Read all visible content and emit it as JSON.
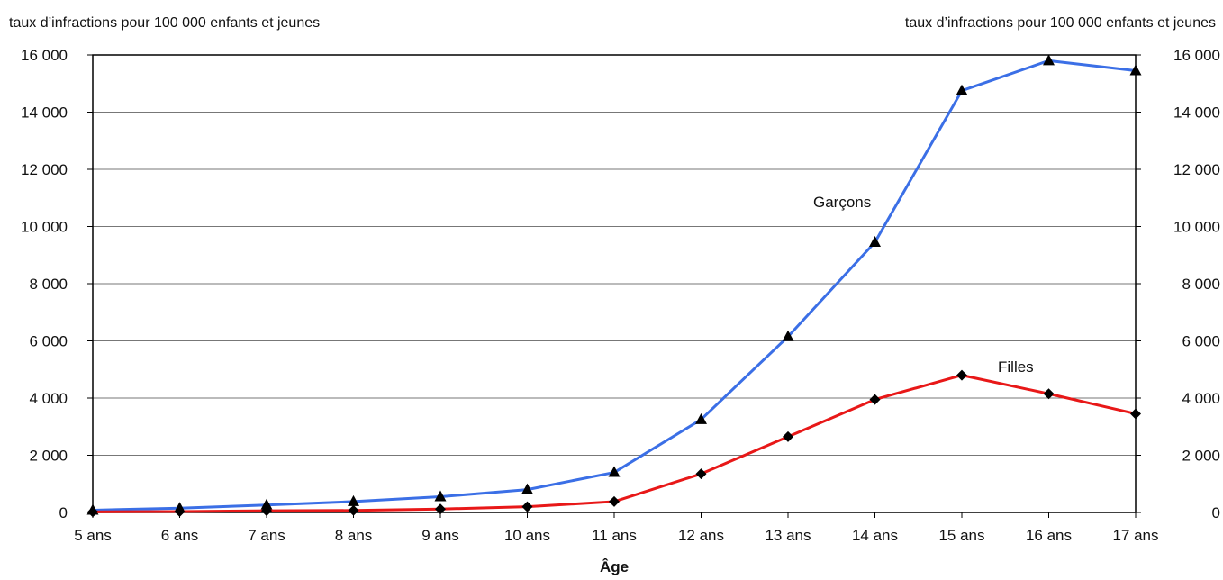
{
  "chart_data": {
    "type": "line",
    "ylabel_left": "taux d’infractions pour 100 000 enfants et jeunes",
    "ylabel_right": "taux d’infractions pour 100 000 enfants et jeunes",
    "xlabel": "Âge",
    "categories": [
      "5 ans",
      "6 ans",
      "7 ans",
      "8 ans",
      "9 ans",
      "10 ans",
      "11 ans",
      "12 ans",
      "13 ans",
      "14 ans",
      "15 ans",
      "16 ans",
      "17 ans"
    ],
    "ylim": [
      0,
      16000
    ],
    "yticks": [
      0,
      2000,
      4000,
      6000,
      8000,
      10000,
      12000,
      14000,
      16000
    ],
    "ytick_labels": [
      "0",
      "2 000",
      "4 000",
      "6 000",
      "8 000",
      "10 000",
      "12 000",
      "14 000",
      "16 000"
    ],
    "grid": true,
    "series": [
      {
        "name": "Garçons",
        "color": "#3b6fe6",
        "marker": "triangle",
        "values": [
          80,
          150,
          260,
          380,
          550,
          800,
          1400,
          3250,
          6150,
          9450,
          14750,
          15800,
          15450
        ]
      },
      {
        "name": "Filles",
        "color": "#e81818",
        "marker": "diamond",
        "values": [
          20,
          30,
          60,
          70,
          120,
          200,
          380,
          1350,
          2650,
          3950,
          4800,
          4150,
          3450
        ]
      }
    ]
  }
}
